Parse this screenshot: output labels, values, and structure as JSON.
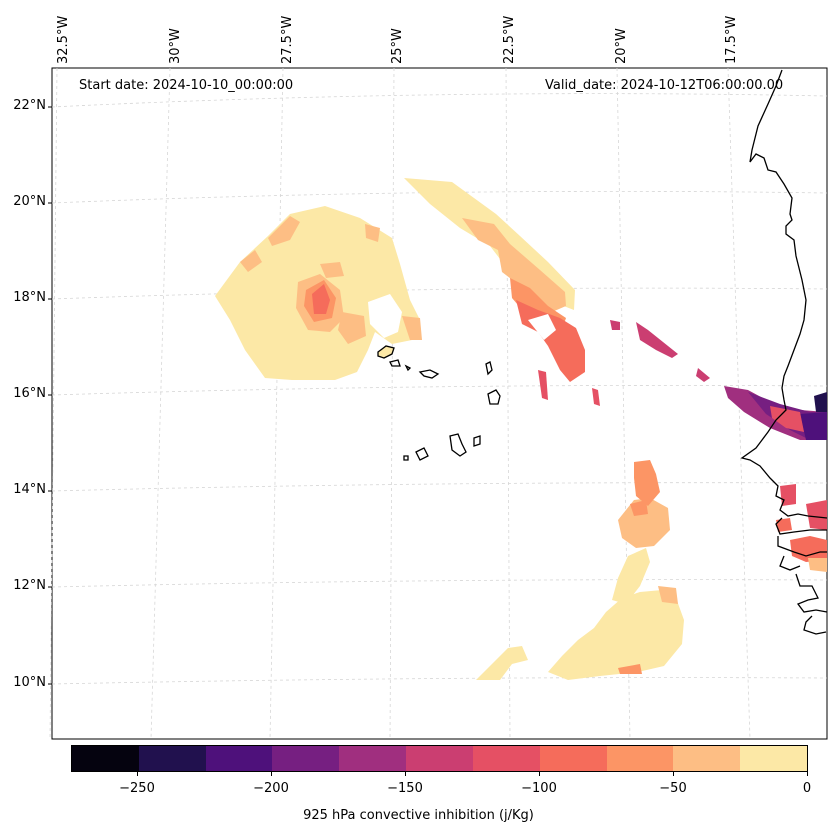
{
  "map": {
    "start_label": "Start date: 2024-10-10_00:00:00",
    "valid_label": "Valid_date: 2024-10-12T06:00:00.00",
    "lon_labels": [
      "32.5°W",
      "30°W",
      "27.5°W",
      "25°W",
      "22.5°W",
      "20°W",
      "17.5°W"
    ],
    "lat_labels": [
      "22°N",
      "20°N",
      "18°N",
      "16°N",
      "14°N",
      "12°N",
      "10°N"
    ]
  },
  "colorbar": {
    "label": "925 hPa convective inhibition (j/Kg)",
    "ticks": [
      "−250",
      "−200",
      "−150",
      "−100",
      "−50",
      "0"
    ],
    "colors": [
      "#05030f",
      "#21114e",
      "#4e117b",
      "#761f81",
      "#a02f7f",
      "#cb3e71",
      "#e55064",
      "#f56c5b",
      "#fc9565",
      "#fdbe84",
      "#fce8a6"
    ]
  }
}
